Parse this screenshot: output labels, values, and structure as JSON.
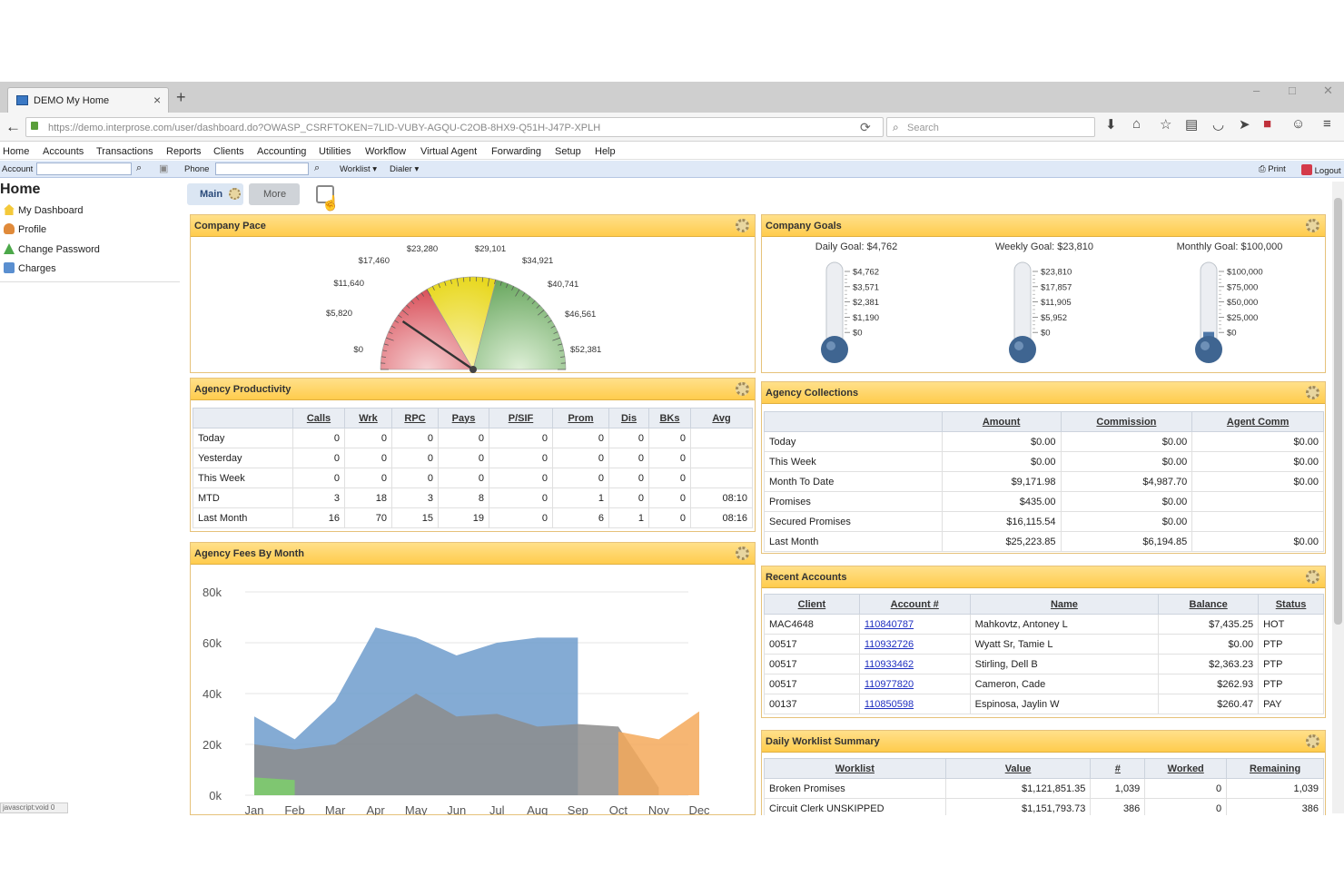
{
  "browser": {
    "tab_title": "DEMO My Home",
    "url": "https://demo.interprose.com/user/dashboard.do?OWASP_CSRFTOKEN=7LID-VUBY-AGQU-C2OB-8HX9-Q51H-J47P-XPLH",
    "search_placeholder": "Search",
    "status_text": "javascript:void 0"
  },
  "menubar": [
    "Home",
    "Accounts",
    "Transactions",
    "Reports",
    "Clients",
    "Accounting",
    "Utilities",
    "Workflow",
    "Virtual Agent",
    "Forwarding",
    "Setup",
    "Help"
  ],
  "toolbar": {
    "account_label": "Account",
    "phone_label": "Phone",
    "worklist_label": "Worklist",
    "dialer_label": "Dialer",
    "print_label": "Print",
    "logout_label": "Logout"
  },
  "sidebar": {
    "title": "Home",
    "items": [
      {
        "label": "My Dashboard"
      },
      {
        "label": "Profile"
      },
      {
        "label": "Change Password"
      },
      {
        "label": "Charges"
      }
    ]
  },
  "dash_tabs": {
    "main": "Main",
    "more": "More"
  },
  "company_pace": {
    "title": "Company Pace",
    "min": 0,
    "max": 52381,
    "needle_value": 10000,
    "tick_labels": [
      "$0",
      "$5,820",
      "$11,640",
      "$17,460",
      "$23,280",
      "$29,101",
      "$34,921",
      "$40,741",
      "$46,561",
      "$52,381"
    ]
  },
  "company_goals": {
    "title": "Company Goals",
    "goals": [
      {
        "label": "Daily Goal: $4,762",
        "ticks": [
          "$4,762",
          "$3,571",
          "$2,381",
          "$1,190",
          "$0"
        ],
        "fill": 0
      },
      {
        "label": "Weekly Goal: $23,810",
        "ticks": [
          "$23,810",
          "$17,857",
          "$11,905",
          "$5,952",
          "$0"
        ],
        "fill": 0
      },
      {
        "label": "Monthly Goal: $100,000",
        "ticks": [
          "$100,000",
          "$75,000",
          "$50,000",
          "$25,000",
          "$0"
        ],
        "fill": 0.09
      }
    ]
  },
  "agency_productivity": {
    "title": "Agency Productivity",
    "columns": [
      "",
      "Calls",
      "Wrk",
      "RPC",
      "Pays",
      "P/SIF",
      "Prom",
      "Dis",
      "BKs",
      "Avg"
    ],
    "rows": [
      [
        "Today",
        "0",
        "0",
        "0",
        "0",
        "0",
        "0",
        "0",
        "0",
        ""
      ],
      [
        "Yesterday",
        "0",
        "0",
        "0",
        "0",
        "0",
        "0",
        "0",
        "0",
        ""
      ],
      [
        "This Week",
        "0",
        "0",
        "0",
        "0",
        "0",
        "0",
        "0",
        "0",
        ""
      ],
      [
        "MTD",
        "3",
        "18",
        "3",
        "8",
        "0",
        "1",
        "0",
        "0",
        "08:10"
      ],
      [
        "Last Month",
        "16",
        "70",
        "15",
        "19",
        "0",
        "6",
        "1",
        "0",
        "08:16"
      ]
    ]
  },
  "agency_collections": {
    "title": "Agency Collections",
    "columns": [
      "",
      "Amount",
      "Commission",
      "Agent Comm"
    ],
    "rows": [
      [
        "Today",
        "$0.00",
        "$0.00",
        "$0.00"
      ],
      [
        "This Week",
        "$0.00",
        "$0.00",
        "$0.00"
      ],
      [
        "Month To Date",
        "$9,171.98",
        "$4,987.70",
        "$0.00"
      ],
      [
        "Promises",
        "$435.00",
        "$0.00",
        ""
      ],
      [
        "Secured Promises",
        "$16,115.54",
        "$0.00",
        ""
      ],
      [
        "Last Month",
        "$25,223.85",
        "$6,194.85",
        "$0.00"
      ]
    ]
  },
  "recent_accounts": {
    "title": "Recent Accounts",
    "columns": [
      "Client",
      "Account #",
      "Name",
      "Balance",
      "Status"
    ],
    "rows": [
      [
        "MAC4648",
        "110840787",
        "Mahkovtz, Antoney L",
        "$7,435.25",
        "HOT"
      ],
      [
        "00517",
        "110932726",
        "Wyatt Sr, Tamie L",
        "$0.00",
        "PTP"
      ],
      [
        "00517",
        "110933462",
        "Stirling, Dell B",
        "$2,363.23",
        "PTP"
      ],
      [
        "00517",
        "110977820",
        "Cameron, Cade",
        "$262.93",
        "PTP"
      ],
      [
        "00137",
        "110850598",
        "Espinosa, Jaylin W",
        "$260.47",
        "PAY"
      ]
    ]
  },
  "daily_worklist": {
    "title": "Daily Worklist Summary",
    "columns": [
      "Worklist",
      "Value",
      "#",
      "Worked",
      "Remaining"
    ],
    "rows": [
      [
        "Broken Promises",
        "$1,121,851.35",
        "1,039",
        "0",
        "1,039"
      ],
      [
        "Circuit Clerk UNSKIPPED",
        "$1,151,793.73",
        "386",
        "0",
        "386"
      ]
    ]
  },
  "fees_chart": {
    "title": "Agency Fees By Month"
  },
  "chart_data": {
    "type": "area",
    "categories": [
      "Jan",
      "Feb",
      "Mar",
      "Apr",
      "May",
      "Jun",
      "Jul",
      "Aug",
      "Sep",
      "Oct",
      "Nov",
      "Dec"
    ],
    "ylim": [
      0,
      80000
    ],
    "yticks": [
      "0k",
      "20k",
      "40k",
      "60k",
      "80k"
    ],
    "series": [
      {
        "values": [
          31000,
          22000,
          37000,
          66000,
          62000,
          55000,
          60000,
          62000,
          62000,
          null,
          null,
          null
        ],
        "color": "#6f9ccc"
      },
      {
        "values": [
          20000,
          18000,
          20000,
          30000,
          40000,
          31000,
          32000,
          27000,
          28000,
          27000,
          3000,
          null
        ],
        "color": "#8c8c8c"
      },
      {
        "values": [
          null,
          null,
          null,
          null,
          null,
          null,
          null,
          null,
          null,
          25000,
          22000,
          33000
        ],
        "color": "#f5a95a"
      },
      {
        "values": [
          7000,
          6000,
          null,
          null,
          null,
          null,
          null,
          null,
          null,
          null,
          null,
          null
        ],
        "color": "#7ccf6a"
      }
    ]
  }
}
